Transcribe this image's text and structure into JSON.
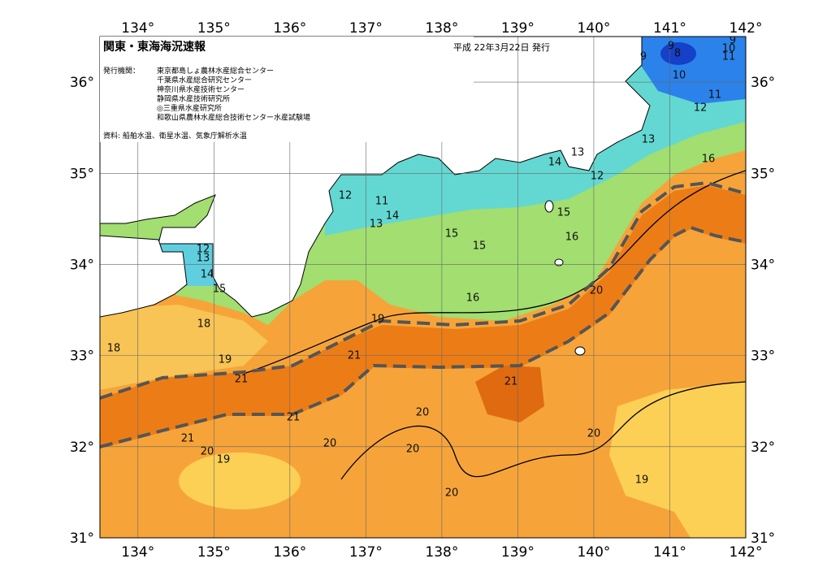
{
  "header": {
    "title": "関東・東海海況速報",
    "date": "平成 22年3月22日 発行",
    "issuers_label": "発行機関：",
    "issuers": [
      "東京都島しょ農林水産総合センター",
      "千葉県水産総合研究センター",
      "神奈川県水産技術センター",
      "静岡県水産技術研究所",
      "◎三重県水産研究所",
      "和歌山県農林水産総合技術センター水産試験場"
    ],
    "source": "資料: 船舶水温、衛星水温、気象庁解析水温"
  },
  "map": {
    "lon_range": [
      133.5,
      142
    ],
    "lat_range": [
      31,
      36.5
    ],
    "lon_ticks": [
      {
        "value": 134,
        "label": "134°"
      },
      {
        "value": 135,
        "label": "135°"
      },
      {
        "value": 136,
        "label": "136°"
      },
      {
        "value": 137,
        "label": "137°"
      },
      {
        "value": 138,
        "label": "138°"
      },
      {
        "value": 139,
        "label": "139°"
      },
      {
        "value": 140,
        "label": "140°"
      },
      {
        "value": 141,
        "label": "141°"
      },
      {
        "value": 142,
        "label": "142°"
      }
    ],
    "lat_ticks": [
      {
        "value": 31,
        "label": "31°"
      },
      {
        "value": 32,
        "label": "32°"
      },
      {
        "value": 33,
        "label": "33°"
      },
      {
        "value": 34,
        "label": "34°"
      },
      {
        "value": 35,
        "label": "35°"
      },
      {
        "value": 36,
        "label": "36°"
      }
    ],
    "isotherm_labels": [
      "9",
      "9",
      "8",
      "10",
      "11",
      "12",
      "9",
      "10",
      "11",
      "13",
      "16",
      "13",
      "14",
      "12",
      "12",
      "11",
      "13",
      "14",
      "15",
      "16",
      "15",
      "15",
      "16",
      "20",
      "12",
      "13",
      "14",
      "15",
      "18",
      "18",
      "19",
      "19",
      "21",
      "21",
      "21",
      "21",
      "21",
      "20",
      "19",
      "20",
      "20",
      "20",
      "20",
      "20",
      "19"
    ]
  }
}
